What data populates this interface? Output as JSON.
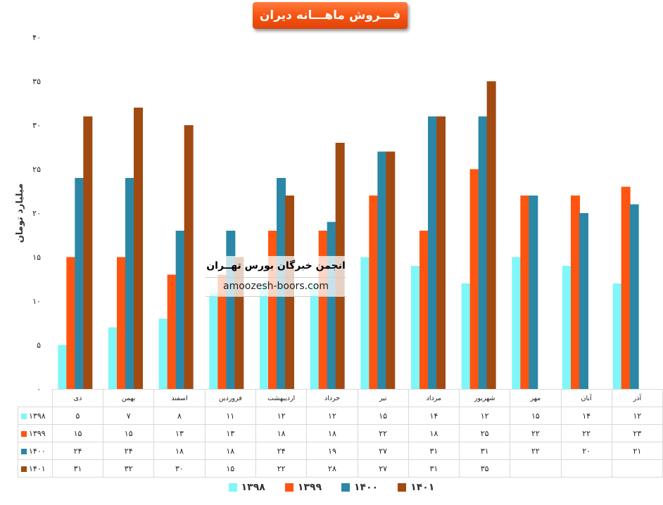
{
  "title": "فـــروش ماهـــانه دیران",
  "watermark": {
    "title": "انجمن خبرگان بورس تهــران",
    "url": "amoozesh-boors.com"
  },
  "colors": {
    "s1398": "#7ff6f8",
    "s1399": "#ff5511",
    "s1400": "#2b87a6",
    "s1401": "#a14a12"
  },
  "chart_data": {
    "type": "bar",
    "title": "فـــروش ماهـــانه دیران",
    "ylabel": "میلیارد تومان",
    "ylim": [
      0,
      40
    ],
    "yticks": [
      "۰",
      "۵",
      "۱۰",
      "۱۵",
      "۲۰",
      "۲۵",
      "۳۰",
      "۳۵",
      "۴۰"
    ],
    "categories": [
      "دی",
      "بهمن",
      "اسفند",
      "فروردین",
      "اردیبهشت",
      "خرداد",
      "تیر",
      "مرداد",
      "شهریور",
      "مهر",
      "آبان",
      "آذر"
    ],
    "series": [
      {
        "name": "۱۳۹۸",
        "values": [
          5,
          7,
          8,
          11,
          12,
          12,
          15,
          14,
          12,
          15,
          14,
          12
        ],
        "labels": [
          "۵",
          "۷",
          "۸",
          "۱۱",
          "۱۲",
          "۱۲",
          "۱۵",
          "۱۴",
          "۱۲",
          "۱۵",
          "۱۴",
          "۱۲"
        ]
      },
      {
        "name": "۱۳۹۹",
        "values": [
          15,
          15,
          13,
          13,
          18,
          18,
          22,
          18,
          25,
          22,
          22,
          23
        ],
        "labels": [
          "۱۵",
          "۱۵",
          "۱۳",
          "۱۳",
          "۱۸",
          "۱۸",
          "۲۲",
          "۱۸",
          "۲۵",
          "۲۲",
          "۲۲",
          "۲۳"
        ]
      },
      {
        "name": "۱۴۰۰",
        "values": [
          24,
          24,
          18,
          18,
          24,
          19,
          27,
          31,
          31,
          22,
          20,
          21
        ],
        "labels": [
          "۲۴",
          "۲۴",
          "۱۸",
          "۱۸",
          "۲۴",
          "۱۹",
          "۲۷",
          "۳۱",
          "۳۱",
          "۲۲",
          "۲۰",
          "۲۱"
        ]
      },
      {
        "name": "۱۴۰۱",
        "values": [
          31,
          32,
          30,
          15,
          22,
          28,
          27,
          31,
          35,
          null,
          null,
          null
        ],
        "labels": [
          "۳۱",
          "۳۲",
          "۳۰",
          "۱۵",
          "۲۲",
          "۲۸",
          "۲۷",
          "۳۱",
          "۳۵",
          "",
          "",
          ""
        ]
      }
    ],
    "legend": "bottom",
    "grid": false
  }
}
